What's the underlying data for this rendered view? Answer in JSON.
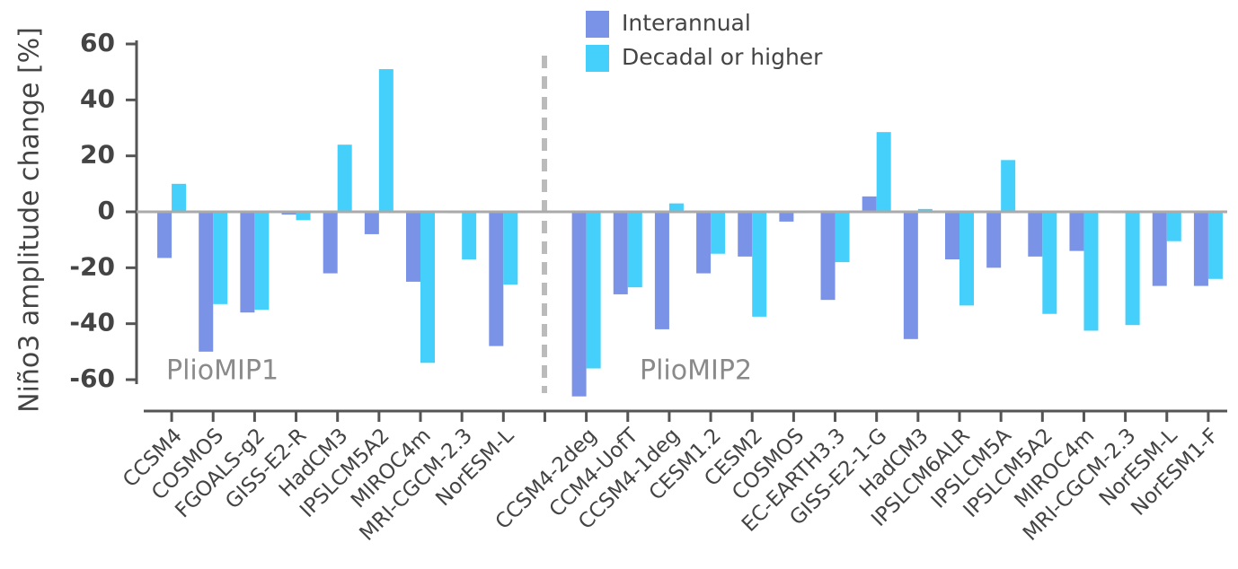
{
  "chart_data": {
    "type": "bar",
    "y_label": "Niño3 amplitude change [%]",
    "categories": [
      "CCSM4",
      "COSMOS",
      "FGOALS-g2",
      "GISS-E2-R",
      "HadCM3",
      "IPSLCM5A2",
      "MIROC4m",
      "MRI-CGCM-2.3",
      "NorESM-L",
      null,
      "CCSM4-2deg",
      "CCM4-UofT",
      "CCSM4-1deg",
      "CESM1.2",
      "CESM2",
      "COSMOS",
      "EC-EARTH3.3",
      "GISS-E2-1-G",
      "HadCM3",
      "IPSLCM6ALR",
      "IPSLCM5A",
      "IPSLCM5A2",
      "MIROC4m",
      "MRI-CGCM-2.3",
      "NorESM-L",
      "NorESM1-F"
    ],
    "series": [
      {
        "name": "Interannual",
        "color": "#7b93e6",
        "values": [
          -16.5,
          -50,
          -36,
          -1,
          -22,
          -8,
          -25,
          -0.5,
          -48,
          null,
          -66,
          -29.5,
          -42,
          -22,
          -16,
          -3.5,
          -31.5,
          5.5,
          -45.5,
          -17,
          -20,
          -16,
          -14,
          -0.5,
          -26.5,
          -26.5
        ]
      },
      {
        "name": "Decadal or higher",
        "color": "#45d0fb",
        "values": [
          10,
          -33,
          -35,
          -3,
          24,
          51,
          -54,
          -17,
          -26,
          null,
          -56,
          -27,
          3,
          -15,
          -37.5,
          -0.5,
          -18,
          28.5,
          1,
          -33.5,
          18.5,
          -36.5,
          -42.5,
          -40.5,
          -10.5,
          -24
        ]
      }
    ],
    "annotations": [
      "PlioMIP1",
      "PlioMIP2"
    ],
    "ylim": [
      -60,
      60
    ],
    "yticks": [
      -60,
      -40,
      -20,
      0,
      20,
      40,
      60
    ],
    "grid": false,
    "legend": "top"
  }
}
